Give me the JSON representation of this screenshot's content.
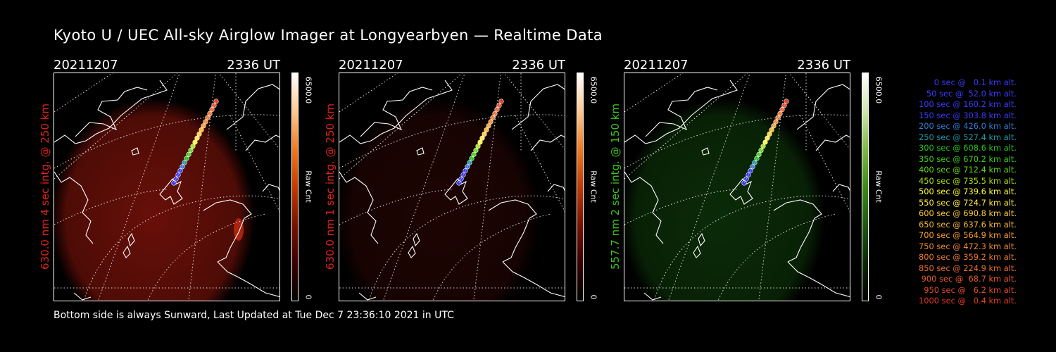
{
  "title": "Kyoto U / UEC All-sky Airglow Imager at Longyearbyen — Realtime Data",
  "footer": "Bottom side is always Sunward, Last Updated at Tue Dec  7 23:36:10 2021 in UTC",
  "panels": [
    {
      "date": "20211207",
      "time": "2336 UT",
      "side_label": "630.0 nm 4 sec intg. @ 250 km",
      "label_color": "#e0231b",
      "cbar_max": "6500.0",
      "cbar_unit": "Raw Cnt",
      "cbar_min": "0",
      "cbar_colors": [
        "#000000",
        "#3a0000",
        "#7a1200",
        "#c43a00",
        "#f07a20",
        "#ffc890",
        "#ffffff"
      ],
      "glow_color": "#7a120a",
      "glow_opacity": 0.85
    },
    {
      "date": "20211207",
      "time": "2336 UT",
      "side_label": "630.0 nm 1 sec intg. @ 250 km",
      "label_color": "#e0231b",
      "cbar_max": "6500.0",
      "cbar_unit": "Raw Cnt",
      "cbar_min": "0",
      "cbar_colors": [
        "#000000",
        "#3a0000",
        "#7a1200",
        "#c43a00",
        "#f07a20",
        "#ffc890",
        "#ffffff"
      ],
      "glow_color": "#2a0604",
      "glow_opacity": 0.7
    },
    {
      "date": "20211207",
      "time": "2336 UT",
      "side_label": "557.7 nm 2 sec intg. @ 150 km",
      "label_color": "#3ec41e",
      "cbar_max": "6500.0",
      "cbar_unit": "Raw Cnt",
      "cbar_min": "0",
      "cbar_colors": [
        "#000000",
        "#0a2a06",
        "#1e5a10",
        "#3d8a1c",
        "#7fb84a",
        "#cfe8b0",
        "#ffffff"
      ],
      "glow_color": "#0e3a0a",
      "glow_opacity": 0.75
    }
  ],
  "chart_data": {
    "type": "scatter",
    "series": [
      {
        "values_sec": [
          0,
          50,
          100,
          150,
          200,
          250,
          300,
          350,
          400,
          450,
          500,
          550,
          600,
          650,
          700,
          750,
          800,
          850,
          900,
          950,
          1000
        ],
        "altitude_km": [
          0.1,
          52.0,
          160.2,
          303.8,
          426.0,
          527.4,
          608.6,
          670.2,
          712.4,
          735.5,
          739.6,
          724.7,
          690.8,
          637.6,
          564.9,
          472.3,
          359.2,
          224.9,
          68.7,
          6.2,
          0.4
        ],
        "colors": [
          "#3a3aff",
          "#3a3aff",
          "#3a3aff",
          "#3a3aff",
          "#2f7bd8",
          "#1f98a8",
          "#24c020",
          "#3ccf1e",
          "#62d616",
          "#a8e010",
          "#ffff30",
          "#ffe840",
          "#ffd030",
          "#f7b830",
          "#f7a030",
          "#f08a30",
          "#ee7a30",
          "#ec6e30",
          "#e85a2a",
          "#e64a26",
          "#e43a20"
        ]
      }
    ]
  },
  "legend": [
    {
      "text": "0 sec @   0.1 km alt.",
      "color": "#3a3aff"
    },
    {
      "text": "50 sec @  52.0 km alt.",
      "color": "#3a3aff"
    },
    {
      "text": "100 sec @ 160.2 km alt.",
      "color": "#3a3aff"
    },
    {
      "text": "150 sec @ 303.8 km alt.",
      "color": "#3a3aff"
    },
    {
      "text": "200 sec @ 426.0 km alt.",
      "color": "#2f7bd8"
    },
    {
      "text": "250 sec @ 527.4 km alt.",
      "color": "#1f98a8"
    },
    {
      "text": "300 sec @ 608.6 km alt.",
      "color": "#24c020"
    },
    {
      "text": "350 sec @ 670.2 km alt.",
      "color": "#3ccf1e"
    },
    {
      "text": "400 sec @ 712.4 km alt.",
      "color": "#62d616"
    },
    {
      "text": "450 sec @ 735.5 km alt.",
      "color": "#a8e010"
    },
    {
      "text": "500 sec @ 739.6 km alt.",
      "color": "#ffff30"
    },
    {
      "text": "550 sec @ 724.7 km alt.",
      "color": "#ffe840"
    },
    {
      "text": "600 sec @ 690.8 km alt.",
      "color": "#ffd030"
    },
    {
      "text": "650 sec @ 637.6 km alt.",
      "color": "#f7b830"
    },
    {
      "text": "700 sec @ 564.9 km alt.",
      "color": "#f7a030"
    },
    {
      "text": "750 sec @ 472.3 km alt.",
      "color": "#f08a30"
    },
    {
      "text": "800 sec @ 359.2 km alt.",
      "color": "#ee7a30"
    },
    {
      "text": "850 sec @ 224.9 km alt.",
      "color": "#ec6e30"
    },
    {
      "text": "900 sec @  68.7 km alt.",
      "color": "#e85a2a"
    },
    {
      "text": "950 sec @   6.2 km alt.",
      "color": "#e64a26"
    },
    {
      "text": "1000 sec @   0.4 km alt.",
      "color": "#e43a20"
    }
  ]
}
